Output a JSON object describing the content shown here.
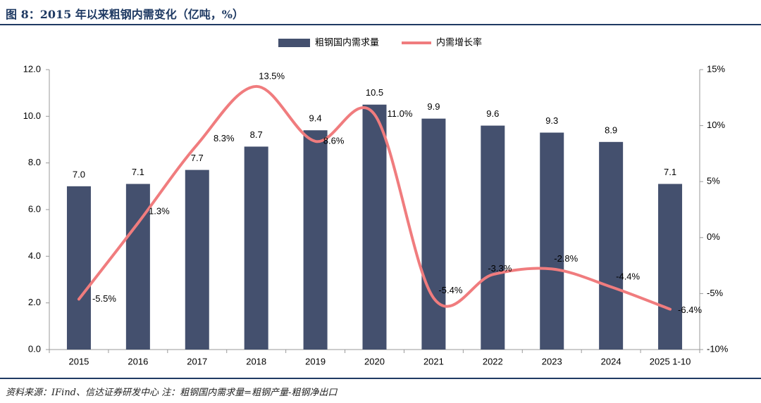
{
  "header": {
    "title": "图 8：2015 年以来粗钢内需变化（亿吨，%）"
  },
  "footer": {
    "source": "资料来源：IFind、信达证券研发中心  注：粗钢国内需求量=粗钢产量-粗钢净出口"
  },
  "colors": {
    "bar": "#44506e",
    "line": "#f07c7e",
    "axis": "#9a9a9a",
    "text": "#000000",
    "accent": "#1f3a63"
  },
  "chart_data": {
    "type": "bar",
    "title": "",
    "categories": [
      "2015",
      "2016",
      "2017",
      "2018",
      "2019",
      "2020",
      "2021",
      "2022",
      "2023",
      "2024",
      "2025 1-10"
    ],
    "series": [
      {
        "name": "粗钢国内需求量",
        "type": "bar",
        "axis": "left",
        "values": [
          7.0,
          7.1,
          7.7,
          8.7,
          9.4,
          10.5,
          9.9,
          9.6,
          9.3,
          8.9,
          7.1
        ],
        "labels": [
          "7.0",
          "7.1",
          "7.7",
          "8.7",
          "9.4",
          "10.5",
          "9.9",
          "9.6",
          "9.3",
          "8.9",
          "7.1"
        ]
      },
      {
        "name": "内需增长率",
        "type": "line",
        "axis": "right",
        "values": [
          -5.5,
          1.3,
          8.3,
          13.5,
          8.6,
          11.0,
          -5.4,
          -3.3,
          -2.8,
          -4.4,
          -6.4
        ],
        "labels": [
          "-5.5%",
          "1.3%",
          "8.3%",
          "13.5%",
          "8.6%",
          "11.0%",
          "-5.4%",
          "-3.3%",
          "-2.8%",
          "-4.4%",
          "-6.4%"
        ]
      }
    ],
    "y_left": {
      "min": 0,
      "max": 12,
      "ticks": [
        "0.0",
        "2.0",
        "4.0",
        "6.0",
        "8.0",
        "10.0",
        "12.0"
      ]
    },
    "y_right": {
      "min": -10,
      "max": 15,
      "ticks": [
        "-10%",
        "-5%",
        "0%",
        "5%",
        "10%",
        "15%"
      ]
    },
    "legend": {
      "position": "top-center",
      "entries": [
        "粗钢国内需求量",
        "内需增长率"
      ]
    },
    "grid": false
  }
}
